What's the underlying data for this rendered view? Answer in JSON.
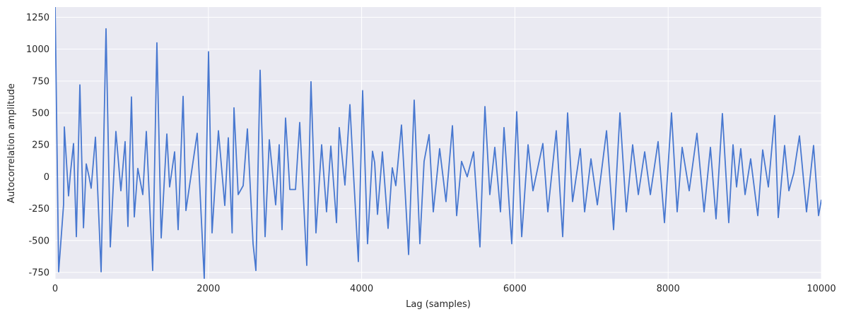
{
  "chart_data": {
    "type": "line",
    "x_label": "Lag (samples)",
    "y_label": "Autocorrelation amplitude",
    "color": "#4878d0",
    "grid": true,
    "xlim": [
      0,
      10000
    ],
    "ylim": [
      -800,
      1330
    ],
    "xticks": [
      0,
      2000,
      4000,
      6000,
      8000,
      10000
    ],
    "yticks": [
      -750,
      -500,
      -250,
      0,
      250,
      500,
      750,
      1000,
      1250
    ],
    "x": [
      0,
      46,
      110,
      120,
      175,
      200,
      240,
      277,
      323,
      370,
      406,
      443,
      470,
      526,
      600,
      664,
      720,
      793,
      858,
      913,
      950,
      996,
      1033,
      1079,
      1144,
      1190,
      1273,
      1328,
      1384,
      1458,
      1494,
      1559,
      1605,
      1670,
      1707,
      1771,
      1854,
      1946,
      2002,
      2048,
      2131,
      2214,
      2260,
      2310,
      2334,
      2389,
      2454,
      2509,
      2583,
      2620,
      2675,
      2740,
      2795,
      2878,
      2924,
      2961,
      3007,
      3063,
      3137,
      3192,
      3284,
      3339,
      3404,
      3478,
      3542,
      3598,
      3672,
      3708,
      3782,
      3847,
      3893,
      3957,
      4013,
      4077,
      4142,
      4170,
      4207,
      4271,
      4345,
      4400,
      4446,
      4520,
      4613,
      4686,
      4760,
      4815,
      4880,
      4935,
      5018,
      5101,
      5185,
      5240,
      5304,
      5378,
      5461,
      5544,
      5609,
      5673,
      5738,
      5812,
      5858,
      5959,
      6024,
      6089,
      6172,
      6236,
      6365,
      6430,
      6540,
      6624,
      6688,
      6753,
      6854,
      6910,
      6993,
      7076,
      7196,
      7288,
      7371,
      7454,
      7537,
      7611,
      7694,
      7768,
      7869,
      7952,
      8044,
      8118,
      8183,
      8275,
      8376,
      8469,
      8552,
      8625,
      8708,
      8791,
      8847,
      8893,
      8948,
      9004,
      9077,
      9170,
      9234,
      9308,
      9391,
      9437,
      9520,
      9576,
      9640,
      9714,
      9806,
      9898,
      9963,
      10000
    ],
    "values": [
      1330,
      -745,
      -220,
      390,
      -150,
      30,
      260,
      -470,
      720,
      -400,
      100,
      0,
      -90,
      310,
      -745,
      1160,
      -550,
      355,
      -110,
      275,
      -390,
      625,
      -315,
      65,
      -140,
      355,
      -735,
      1050,
      -480,
      335,
      -80,
      195,
      -415,
      630,
      -265,
      0,
      340,
      -800,
      980,
      -440,
      360,
      -225,
      305,
      -440,
      540,
      -140,
      -70,
      375,
      -525,
      -735,
      835,
      -470,
      290,
      -220,
      250,
      -415,
      460,
      -100,
      -100,
      425,
      -695,
      745,
      -440,
      250,
      -275,
      240,
      -360,
      385,
      -65,
      565,
      30,
      -665,
      675,
      -525,
      200,
      110,
      -295,
      195,
      -405,
      70,
      -70,
      405,
      -610,
      600,
      -525,
      120,
      330,
      -275,
      220,
      -195,
      400,
      -305,
      120,
      0,
      195,
      -550,
      550,
      -140,
      230,
      -275,
      385,
      -525,
      510,
      -470,
      250,
      -110,
      260,
      -275,
      360,
      -470,
      500,
      -195,
      220,
      -275,
      140,
      -220,
      360,
      -415,
      500,
      -275,
      250,
      -140,
      195,
      -140,
      275,
      -360,
      500,
      -275,
      230,
      -110,
      340,
      -275,
      230,
      -330,
      495,
      -360,
      250,
      -80,
      220,
      -140,
      140,
      -305,
      210,
      -80,
      480,
      -320,
      245,
      -110,
      30,
      320,
      -275,
      245,
      -305,
      -180
    ]
  }
}
